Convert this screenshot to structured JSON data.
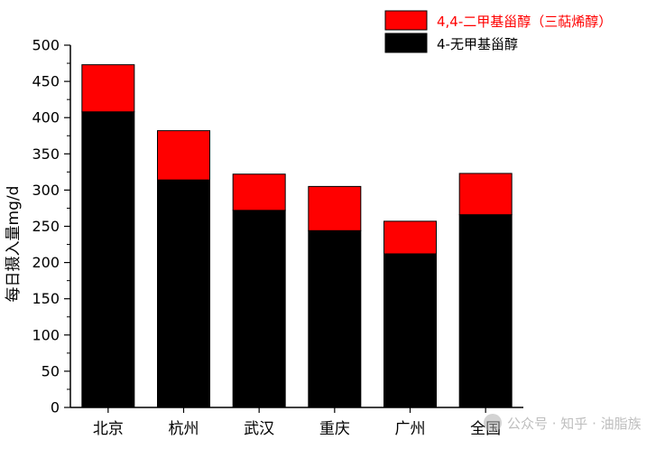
{
  "chart_data": {
    "type": "bar",
    "stacked": true,
    "title": "",
    "xlabel": "",
    "ylabel": "每日摄入量mg/d",
    "ylim": [
      0,
      500
    ],
    "yticks": [
      0,
      50,
      100,
      150,
      200,
      250,
      300,
      350,
      400,
      450,
      500
    ],
    "categories": [
      "北京",
      "杭州",
      "武汉",
      "重庆",
      "广州",
      "全国"
    ],
    "series": [
      {
        "name": "4-无甲基甾醇",
        "color": "#000000",
        "values": [
          408,
          314,
          272,
          244,
          212,
          266
        ]
      },
      {
        "name": "4,4-二甲基甾醇（三萜烯醇）",
        "color": "#ff0000",
        "values": [
          65,
          68,
          50,
          61,
          45,
          57
        ]
      }
    ],
    "legend": {
      "placement": "top-right",
      "entries": [
        {
          "label": "4,4-二甲基甾醇（三萜烯醇）",
          "color": "#ff0000"
        },
        {
          "label": "4-无甲基甾醇",
          "color": "#000000"
        }
      ]
    },
    "grid": false
  },
  "watermark": "公众号 · 知乎 · 油脂族"
}
